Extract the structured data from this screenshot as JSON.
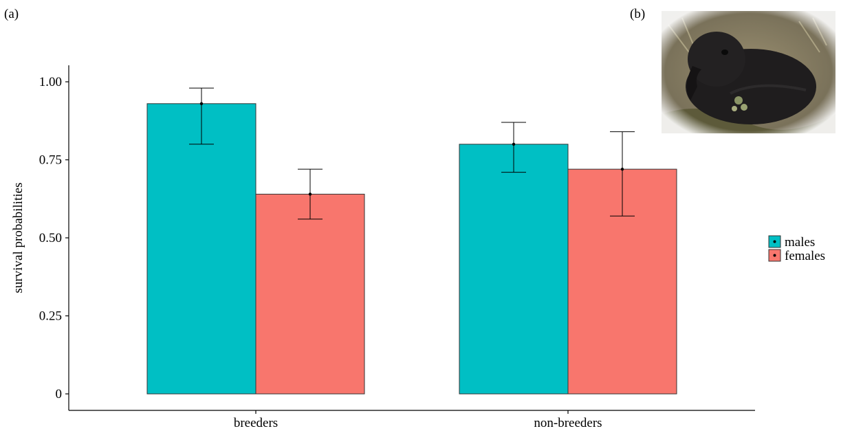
{
  "panels": {
    "a": "(a)",
    "b": "(b)"
  },
  "photo": {
    "icon": "bird-photo",
    "background": "#8f8466",
    "bird_color": "#1f1d1e"
  },
  "chart_data": {
    "type": "bar",
    "categories": [
      "breeders",
      "non-breeders"
    ],
    "series": [
      {
        "name": "males",
        "color": "#00bfc4",
        "values": [
          0.93,
          0.8
        ],
        "ci_low": [
          0.8,
          0.71
        ],
        "ci_high": [
          0.98,
          0.87
        ]
      },
      {
        "name": "females",
        "color": "#f8766d",
        "values": [
          0.64,
          0.72
        ],
        "ci_low": [
          0.56,
          0.57
        ],
        "ci_high": [
          0.72,
          0.84
        ]
      }
    ],
    "ylabel": "survival probabilities",
    "xlabel": "",
    "ylim": [
      0,
      1.05
    ],
    "yticks": [
      0,
      0.25,
      0.5,
      0.75,
      1.0
    ],
    "ytick_labels": [
      "0",
      "0.25",
      "0.50",
      "0.75",
      "1.00"
    ],
    "grid": false,
    "legend_position": "right"
  }
}
